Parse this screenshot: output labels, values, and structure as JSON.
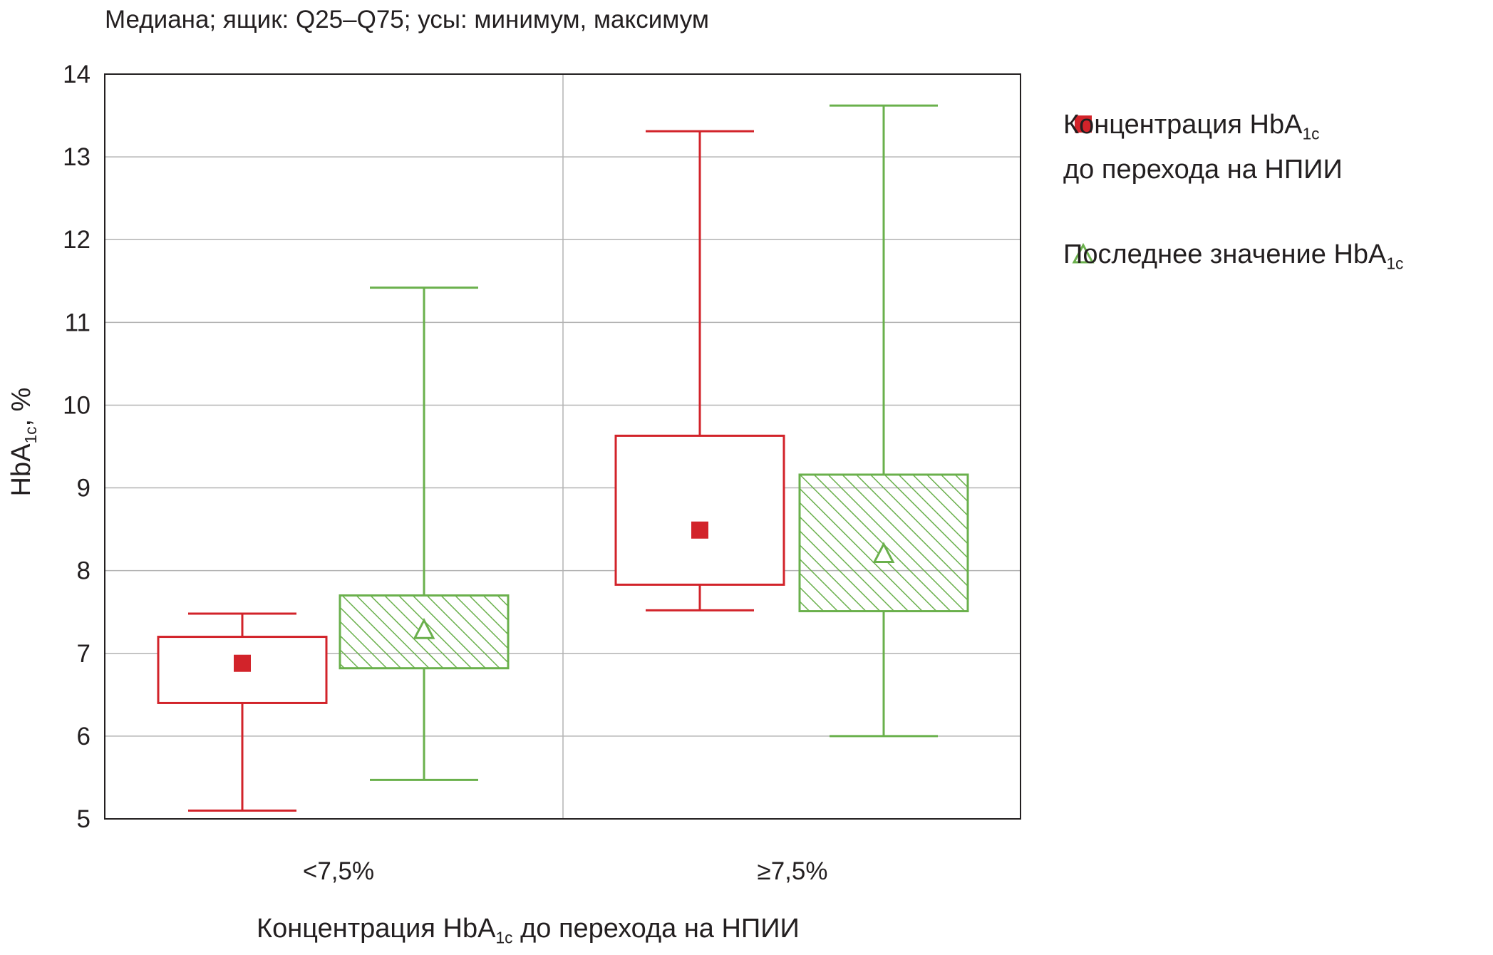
{
  "chart_data": {
    "type": "boxplot",
    "title": "Медиана; ящик: Q25–Q75; усы: минимум, максимум",
    "ylabel": "HbA1c, %",
    "xlabel": "Концентрация HbA1c до перехода на НПИИ",
    "ylim": [
      5,
      14
    ],
    "yticks": [
      5,
      6,
      7,
      8,
      9,
      10,
      11,
      12,
      13,
      14
    ],
    "grid": true,
    "categories": [
      "<7,5%",
      "≥7,5%"
    ],
    "series": [
      {
        "name": "Концентрация HbA1c до перехода на НПИИ",
        "color": "#d2232a",
        "marker": "square",
        "boxes": [
          {
            "min": 5.1,
            "q25": 6.4,
            "median": 6.88,
            "q75": 7.2,
            "max": 7.48
          },
          {
            "min": 7.52,
            "q25": 7.83,
            "median": 8.49,
            "q75": 9.63,
            "max": 13.31
          }
        ]
      },
      {
        "name": "Последнее значение HbA1c",
        "color": "#6ab04c",
        "marker": "triangle",
        "hatched": true,
        "boxes": [
          {
            "min": 5.47,
            "q25": 6.82,
            "median": 7.28,
            "q75": 7.7,
            "max": 11.42
          },
          {
            "min": 6.0,
            "q25": 7.51,
            "median": 8.2,
            "q75": 9.16,
            "max": 13.62
          }
        ]
      }
    ]
  },
  "text": {
    "title": "Медиана; ящик: Q25–Q75; усы: минимум, максимум",
    "ylabel_main": "HbA",
    "ylabel_sub": "1c",
    "ylabel_tail": ", %",
    "legend1_line1_main": "Концентрация HbA",
    "legend1_line1_sub": "1c",
    "legend1_line2": "до перехода на НПИИ",
    "legend2_main": "Последнее значение HbA",
    "legend2_sub": "1c",
    "cat1": "<7,5%",
    "cat2": "≥7,5%",
    "xlabel_main": "Концентрация HbA",
    "xlabel_sub": "1c",
    "xlabel_tail": " до перехода на НПИИ"
  }
}
